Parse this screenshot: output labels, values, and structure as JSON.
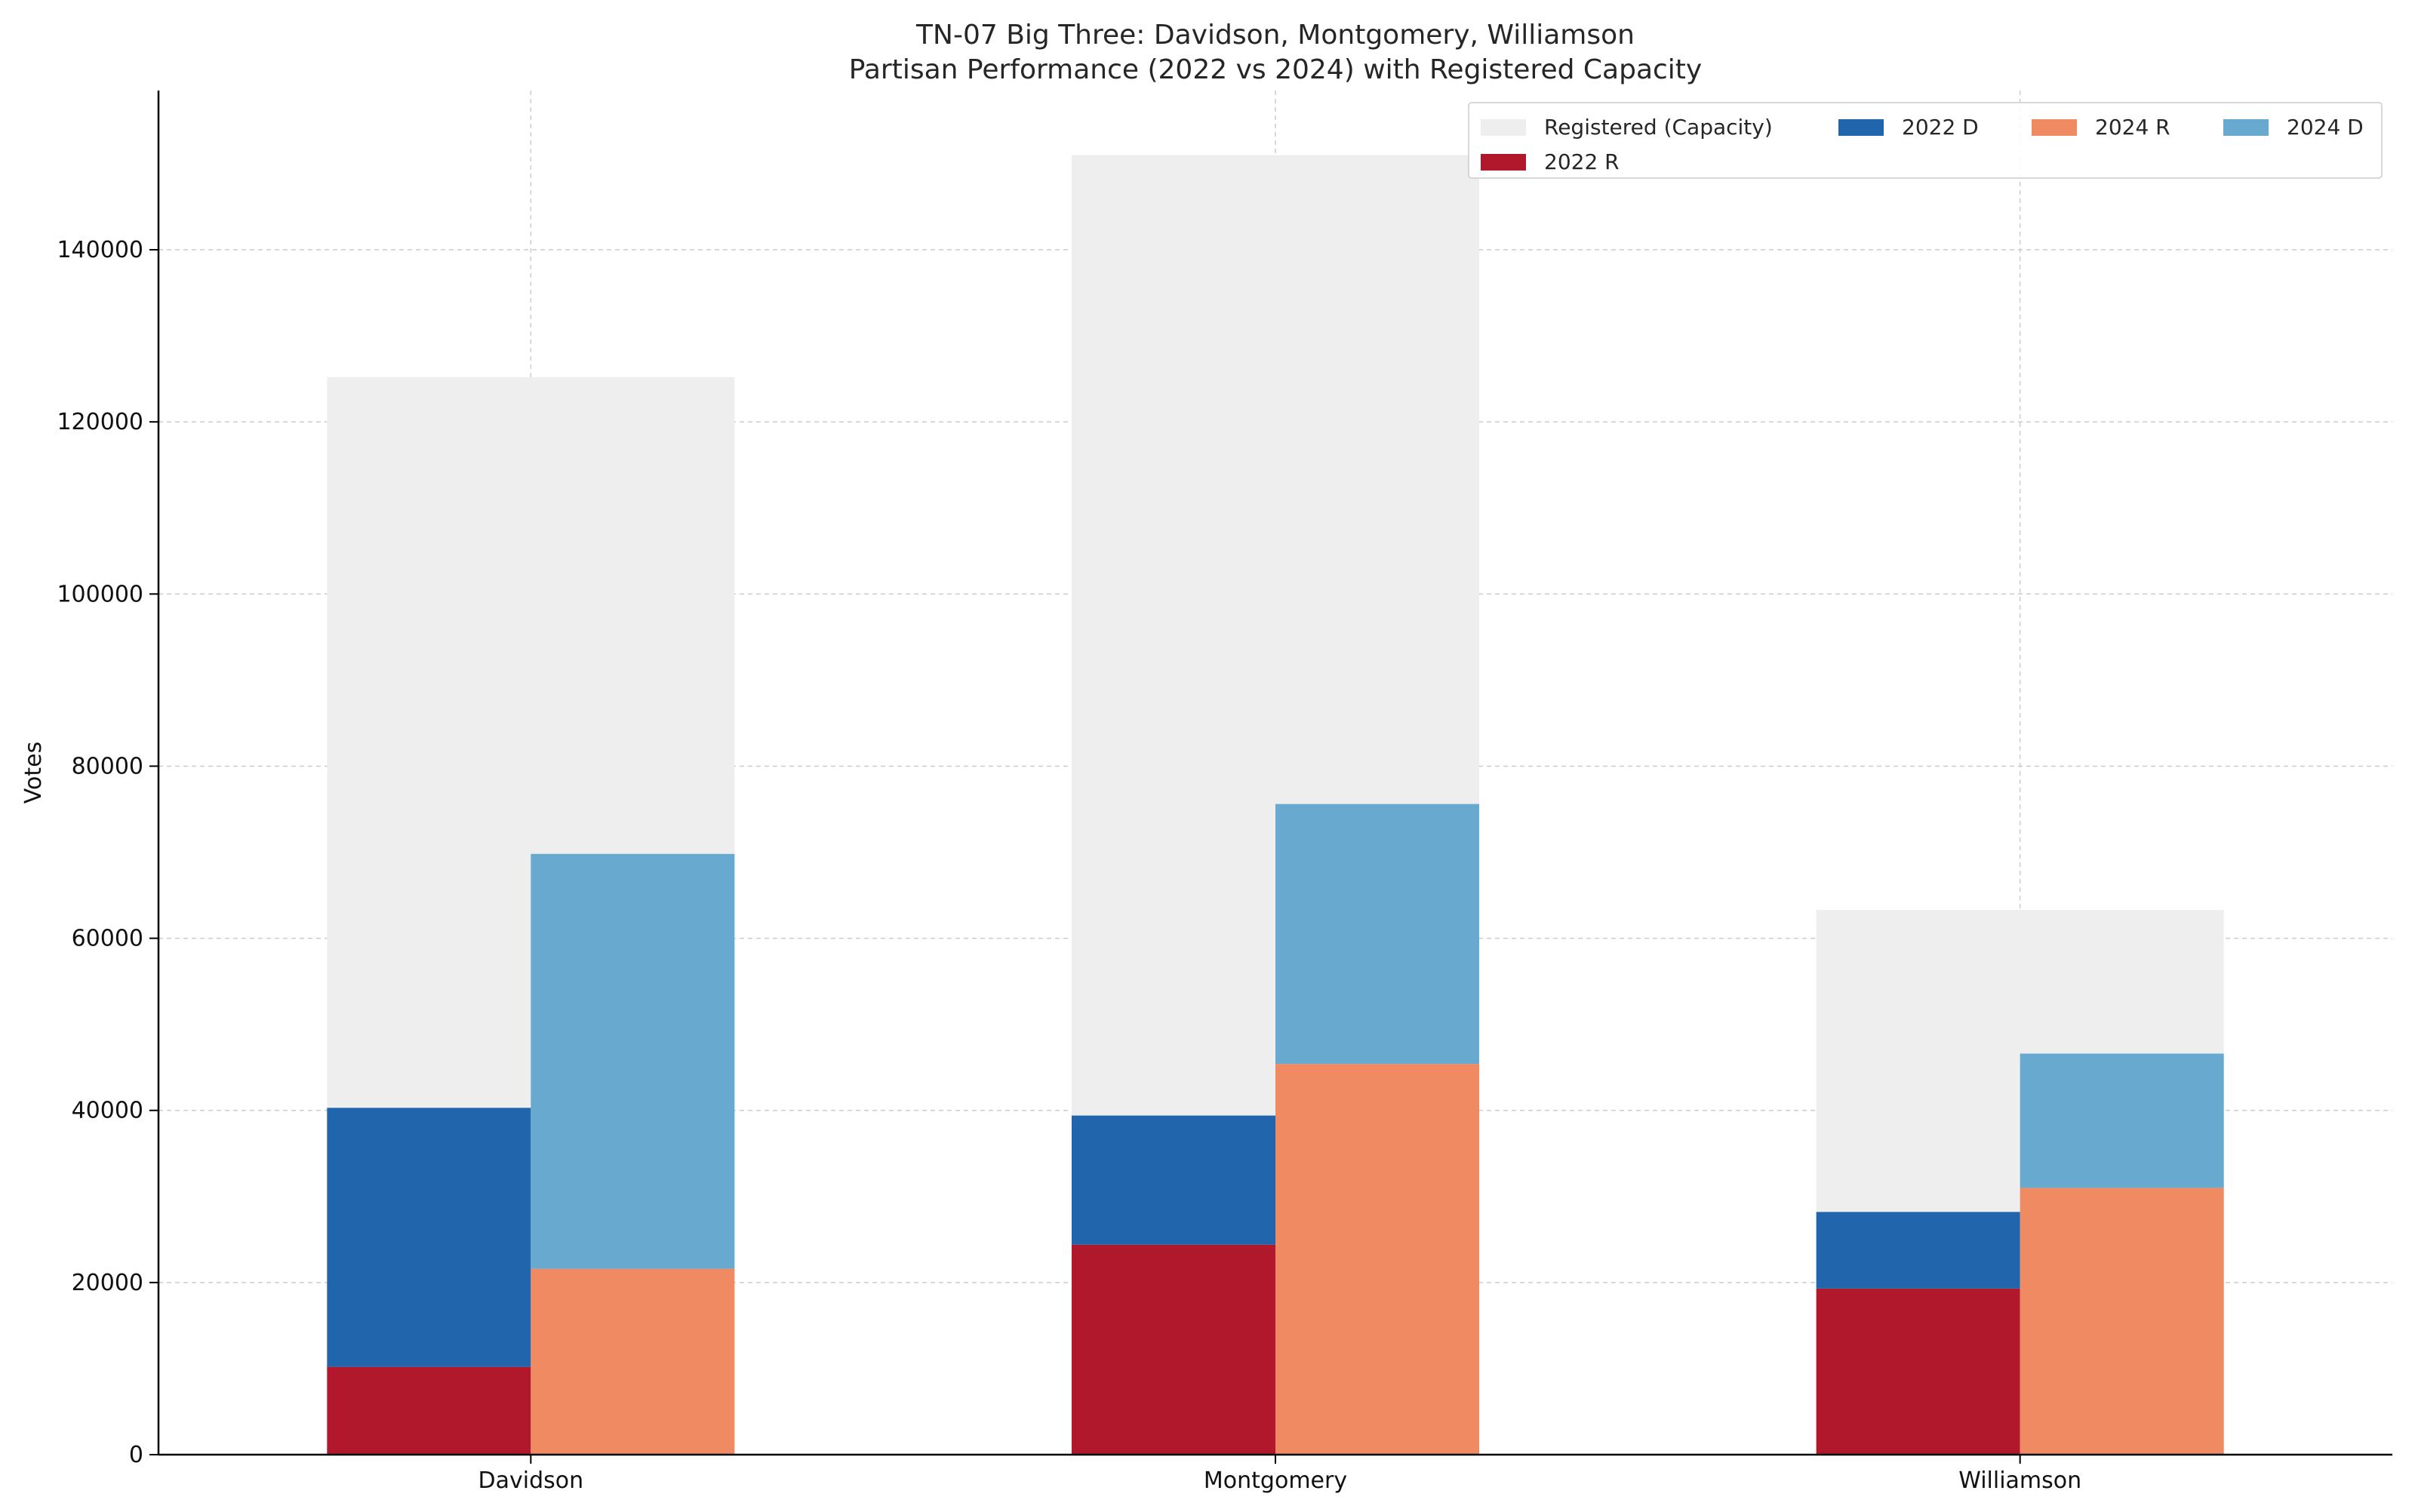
{
  "colors": {
    "registered": "#eeeeee",
    "r2022": "#b2182b",
    "d2022": "#2166ac",
    "r2024": "#ef8a62",
    "d2024": "#67a9cf",
    "grid": "#cccccc",
    "axis": "#000000"
  },
  "chart_data": {
    "type": "bar",
    "subtype": "stacked-grouped",
    "title": "TN-07 Big Three: Davidson, Montgomery, Williamson",
    "subtitle": "Partisan Performance (2022 vs 2024) with Registered Capacity",
    "xlabel": "",
    "ylabel": "Votes",
    "ylim": [
      0,
      158500
    ],
    "yticks": [
      0,
      20000,
      40000,
      60000,
      80000,
      100000,
      120000,
      140000
    ],
    "ytick_labels": [
      "0",
      "20000",
      "40000",
      "60000",
      "80000",
      "100000",
      "120000",
      "140000"
    ],
    "grid": true,
    "legend_position": "top-right",
    "categories": [
      "Davidson",
      "Montgomery",
      "Williamson"
    ],
    "registered": [
      125200,
      151000,
      63300
    ],
    "series": [
      {
        "name": "2022 R",
        "key": "r2022",
        "year": "2022",
        "values": [
          10200,
          24400,
          19300
        ]
      },
      {
        "name": "2022 D",
        "key": "d2022",
        "year": "2022",
        "values": [
          30100,
          15000,
          8900
        ]
      },
      {
        "name": "2024 R",
        "key": "r2024",
        "year": "2024",
        "values": [
          21600,
          45400,
          31000
        ]
      },
      {
        "name": "2024 D",
        "key": "d2024",
        "year": "2024",
        "values": [
          48200,
          30200,
          15600
        ]
      }
    ],
    "legend": [
      {
        "label": "Registered (Capacity)",
        "key": "registered"
      },
      {
        "label": "2022 D",
        "key": "d2022"
      },
      {
        "label": "2024 R",
        "key": "r2024"
      },
      {
        "label": "2024 D",
        "key": "d2024"
      },
      {
        "label": "2022 R",
        "key": "r2022"
      }
    ]
  }
}
